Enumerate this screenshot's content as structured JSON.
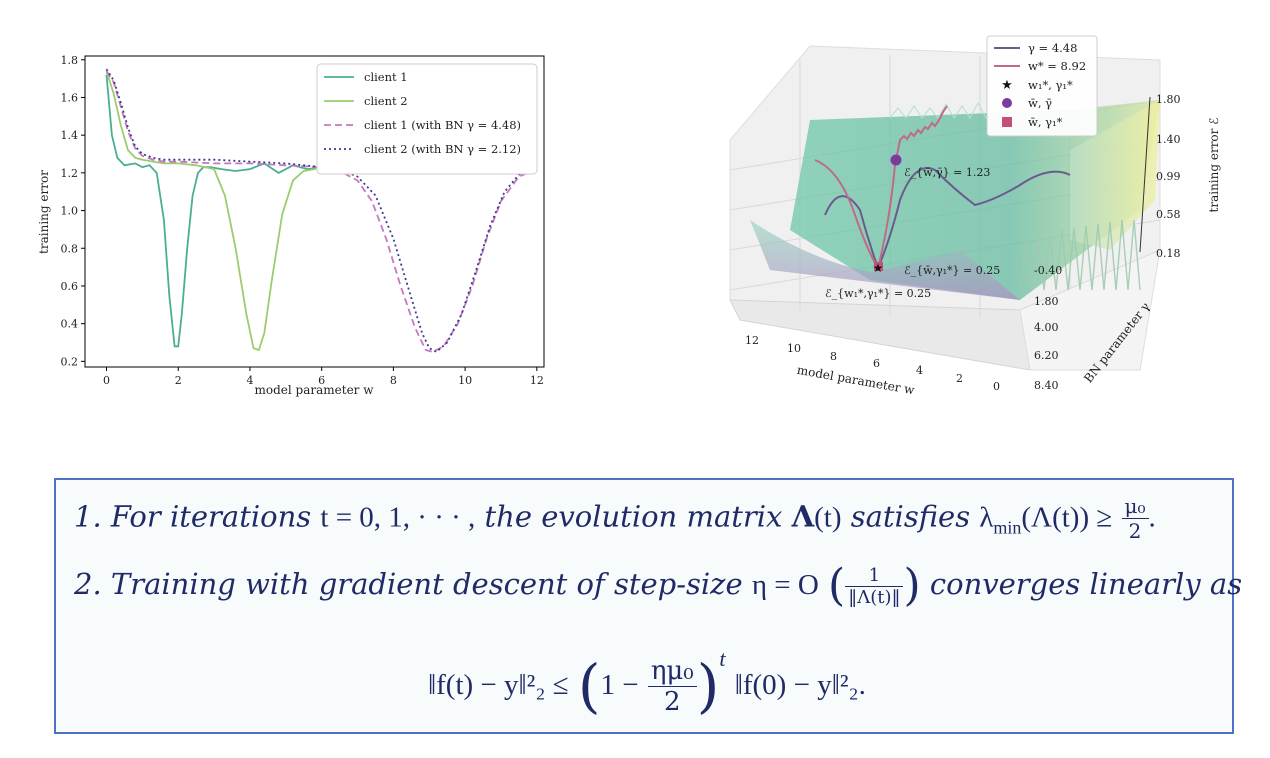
{
  "chart_data": [
    {
      "type": "line",
      "title": "",
      "xlabel": "model parameter w",
      "ylabel": "training error",
      "xlim": [
        -0.6,
        12.2
      ],
      "ylim": [
        0.17,
        1.82
      ],
      "xticks": [
        "0",
        "2",
        "4",
        "6",
        "8",
        "10",
        "12"
      ],
      "yticks": [
        "0.2",
        "0.4",
        "0.6",
        "0.8",
        "1.0",
        "1.2",
        "1.4",
        "1.6",
        "1.8"
      ],
      "legend_position": "upper-right",
      "series": [
        {
          "name": "client 1",
          "color": "#4aae95",
          "style": "solid",
          "x": [
            0,
            0.15,
            0.3,
            0.5,
            0.8,
            1.0,
            1.2,
            1.4,
            1.6,
            1.75,
            1.9,
            2.0,
            2.1,
            2.25,
            2.4,
            2.55,
            2.7,
            2.9,
            3.2,
            3.6,
            4.0,
            4.4,
            4.8,
            5.2,
            5.6,
            6.0,
            6.4,
            6.8,
            7.2,
            7.6,
            8.0,
            8.4,
            8.8,
            9.2,
            9.6,
            10.0,
            10.4,
            10.8,
            11.2,
            11.6,
            12.0
          ],
          "y": [
            1.72,
            1.4,
            1.28,
            1.24,
            1.25,
            1.23,
            1.24,
            1.2,
            0.95,
            0.55,
            0.28,
            0.28,
            0.45,
            0.8,
            1.08,
            1.2,
            1.23,
            1.23,
            1.22,
            1.21,
            1.22,
            1.25,
            1.2,
            1.24,
            1.22,
            1.23,
            1.25,
            1.22,
            1.24,
            1.21,
            1.25,
            1.23,
            1.24,
            1.22,
            1.25,
            1.23,
            1.25,
            1.22,
            1.24,
            1.23,
            1.26
          ]
        },
        {
          "name": "client 2",
          "color": "#9acd6e",
          "style": "solid",
          "x": [
            0,
            0.2,
            0.4,
            0.6,
            0.8,
            1.0,
            1.3,
            1.6,
            2.0,
            2.5,
            3.0,
            3.3,
            3.6,
            3.9,
            4.1,
            4.25,
            4.4,
            4.6,
            4.9,
            5.2,
            5.5,
            5.8,
            6.0,
            6.4,
            6.8,
            7.2,
            7.6,
            8.0,
            8.4,
            8.8,
            9.2,
            9.6,
            10.0,
            10.4,
            10.8,
            11.2,
            11.6,
            12.0
          ],
          "y": [
            1.74,
            1.62,
            1.45,
            1.32,
            1.28,
            1.27,
            1.26,
            1.25,
            1.25,
            1.24,
            1.22,
            1.08,
            0.8,
            0.45,
            0.27,
            0.26,
            0.35,
            0.62,
            0.98,
            1.16,
            1.21,
            1.22,
            1.23,
            1.24,
            1.25,
            1.26,
            1.27,
            1.27,
            1.28,
            1.28,
            1.28,
            1.27,
            1.26,
            1.24,
            1.25,
            1.24,
            1.25,
            1.26
          ]
        },
        {
          "name": "client 1 (with BN γ = 4.48)",
          "color": "#c777c0",
          "style": "dashed",
          "x": [
            0,
            0.2,
            0.4,
            0.6,
            0.8,
            1.0,
            1.3,
            1.6,
            2.0,
            3.0,
            4.0,
            5.0,
            6.0,
            6.5,
            7.0,
            7.4,
            7.8,
            8.2,
            8.6,
            8.9,
            9.1,
            9.4,
            9.8,
            10.2,
            10.6,
            11.0,
            11.5,
            12.0
          ],
          "y": [
            1.74,
            1.68,
            1.55,
            1.42,
            1.33,
            1.29,
            1.27,
            1.26,
            1.26,
            1.25,
            1.25,
            1.24,
            1.23,
            1.21,
            1.16,
            1.05,
            0.85,
            0.6,
            0.38,
            0.26,
            0.25,
            0.28,
            0.4,
            0.6,
            0.85,
            1.05,
            1.18,
            1.22
          ]
        },
        {
          "name": "client 2 (with BN γ = 2.12)",
          "color": "#3b3b8f",
          "style": "dotted",
          "x": [
            0,
            0.2,
            0.4,
            0.6,
            0.8,
            1.0,
            1.3,
            1.6,
            2.0,
            3.0,
            4.0,
            5.0,
            6.0,
            6.5,
            7.0,
            7.5,
            8.0,
            8.4,
            8.8,
            9.0,
            9.2,
            9.5,
            9.9,
            10.3,
            10.7,
            11.1,
            11.5,
            12.0
          ],
          "y": [
            1.75,
            1.69,
            1.57,
            1.44,
            1.34,
            1.3,
            1.28,
            1.27,
            1.27,
            1.27,
            1.26,
            1.25,
            1.23,
            1.22,
            1.18,
            1.08,
            0.85,
            0.6,
            0.35,
            0.27,
            0.25,
            0.3,
            0.45,
            0.68,
            0.92,
            1.1,
            1.19,
            1.23
          ]
        }
      ]
    },
    {
      "type": "surface-3d",
      "title": "",
      "xlabel": "model parameter w",
      "ylabel": "BN parameter γ",
      "zlabel": "training error ℰ",
      "xticks": [
        "12",
        "10",
        "8",
        "6",
        "4",
        "2",
        "0"
      ],
      "yticks": [
        "-0.40",
        "1.80",
        "4.00",
        "6.20",
        "8.40"
      ],
      "zticks": [
        "1.80",
        "1.40",
        "0.99",
        "0.58",
        "0.18"
      ],
      "legend": [
        {
          "label": "γ = 4.48",
          "marker": "line",
          "color": "#6b5a8e"
        },
        {
          "label": "w* = 8.92",
          "marker": "line",
          "color": "#c06a8a"
        },
        {
          "label": "w₁*, γ₁*",
          "marker": "star",
          "color": "#111111"
        },
        {
          "label": "w̄, γ̄",
          "marker": "circle",
          "color": "#7b3aa0"
        },
        {
          "label": "w̄, γ₁*",
          "marker": "square",
          "color": "#c44f7b"
        }
      ],
      "annotations": [
        "ℰ_{w̄,γ̄} = 1.23",
        "ℰ_{w̄,γ₁*} = 0.25",
        "ℰ_{w₁*,γ₁*} = 0.25"
      ]
    }
  ],
  "theorem": {
    "item1": {
      "number": "1.",
      "text_a": "For iterations",
      "math_a": "t = 0, 1, · · · ,",
      "text_b": "the evolution matrix",
      "math_b": "Λ",
      "math_b2": "(t)",
      "text_c": "satisfies",
      "math_c": "λ",
      "math_c_sub": "min",
      "math_c2": "(Λ(t)) ≥",
      "frac_num": "μ₀",
      "frac_den": "2"
    },
    "item2": {
      "number": "2.",
      "text_a": "Training with gradient descent of step-size",
      "math_a": "η = O",
      "frac_num": "1",
      "frac_den": "‖Λ(t)‖",
      "text_b": "converges linearly as"
    },
    "equation": {
      "lhs": "‖f(t) − y‖²₂ ≤",
      "paren_left": "(",
      "one_minus": "1 −",
      "frac_num": "ημ₀",
      "frac_den": "2",
      "paren_right": ")",
      "exponent": "t",
      "rhs": "‖f(0) − y‖²₂."
    }
  }
}
